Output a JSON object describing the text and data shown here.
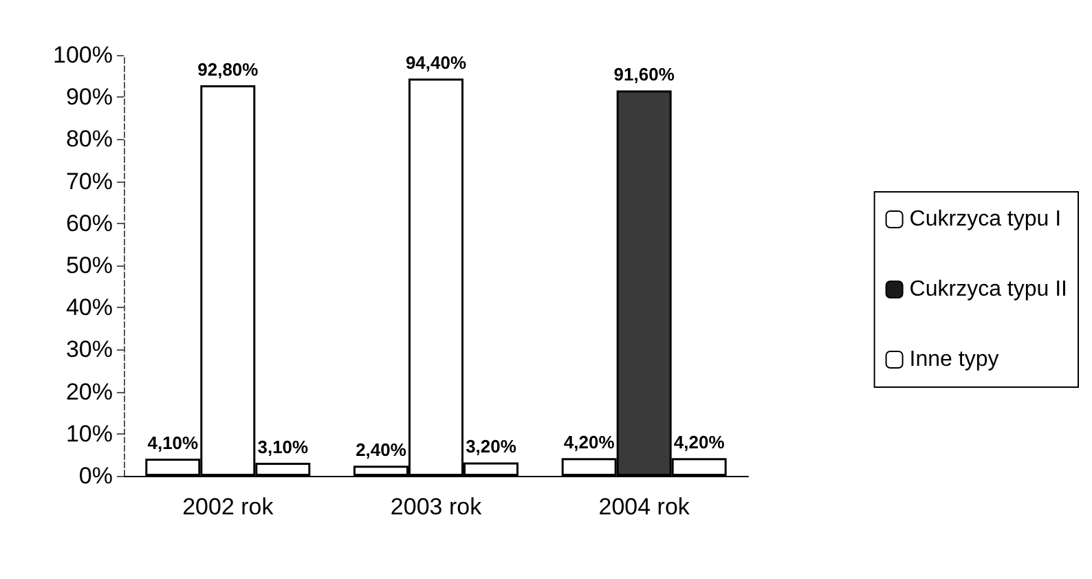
{
  "chart_data": {
    "type": "bar",
    "categories": [
      "2002 rok",
      "2003 rok",
      "2004 rok"
    ],
    "series": [
      {
        "name": "Cukrzyca typu I",
        "color": "#ffffff",
        "values": [
          4.1,
          2.4,
          4.2
        ],
        "value_labels": [
          "4,10%",
          "2,40%",
          "4,20%"
        ]
      },
      {
        "name": "Cukrzyca typu II",
        "color": "#1a1a1a",
        "colors": [
          "#ffffff",
          "#ffffff",
          "#3a3a3a"
        ],
        "values": [
          92.8,
          94.4,
          91.6
        ],
        "value_labels": [
          "92,80%",
          "94,40%",
          "91,60%"
        ]
      },
      {
        "name": "Inne typy",
        "color": "#ffffff",
        "values": [
          3.1,
          3.2,
          4.2
        ],
        "value_labels": [
          "3,10%",
          "3,20%",
          "4,20%"
        ]
      }
    ],
    "ylim": [
      0,
      100
    ],
    "yticks": [
      {
        "value": 0,
        "label": "0%"
      },
      {
        "value": 10,
        "label": "10%"
      },
      {
        "value": 20,
        "label": "20%"
      },
      {
        "value": 30,
        "label": "30%"
      },
      {
        "value": 40,
        "label": "40%"
      },
      {
        "value": 50,
        "label": "50%"
      },
      {
        "value": 60,
        "label": "60%"
      },
      {
        "value": 70,
        "label": "70%"
      },
      {
        "value": 80,
        "label": "80%"
      },
      {
        "value": 90,
        "label": "90%"
      },
      {
        "value": 100,
        "label": "100%"
      }
    ],
    "grid": false,
    "legend": "right"
  }
}
